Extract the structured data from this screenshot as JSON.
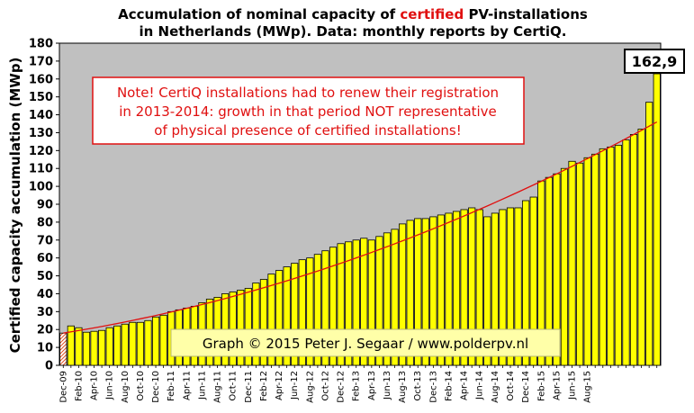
{
  "chart_data": {
    "type": "bar",
    "title_line1_prefix": "Accumulation  of nominal  capacity  of ",
    "title_line1_highlight": "certified",
    "title_line1_suffix": " PV-installations",
    "title_line2": "in Netherlands (MWp). Data: monthly  reports by CertiQ.",
    "ylabel": "Certified capacity accumulation (MWp)",
    "ylim": [
      0,
      180
    ],
    "yticks": [
      0,
      10,
      20,
      30,
      40,
      50,
      60,
      70,
      80,
      90,
      100,
      110,
      120,
      130,
      140,
      150,
      160,
      170,
      180
    ],
    "grid": false,
    "x_tick_labels": [
      "Dec-09",
      "Feb-10",
      "Apr-10",
      "Jun-10",
      "Aug-10",
      "Oct-10",
      "Dec-10",
      "Feb-11",
      "Apr-11",
      "Jun-11",
      "Aug-11",
      "Oct-11",
      "Dec-11",
      "Feb-12",
      "Apr-12",
      "Jun-12",
      "Aug-12",
      "Oct-12",
      "Dec-12",
      "Feb-13",
      "Apr-13",
      "Jun-13",
      "Aug-13",
      "Oct-13",
      "Dec-13",
      "Feb-14",
      "Apr-14",
      "Jun-14",
      "Aug-14",
      "Oct-14",
      "Dec-14",
      "Feb-15",
      "Apr-15",
      "Jun-15",
      "Aug-15"
    ],
    "values": [
      18,
      22,
      21,
      18.5,
      19,
      19.5,
      21,
      22,
      23,
      24,
      24,
      25,
      27,
      28,
      30,
      31,
      32,
      33,
      35,
      37,
      38,
      40,
      41,
      42,
      43,
      46,
      48,
      51,
      53,
      55,
      57,
      59,
      60,
      62,
      64,
      66,
      68,
      69,
      70,
      71,
      70,
      72,
      74,
      76,
      79,
      81,
      82,
      82,
      83,
      84,
      85,
      86,
      87,
      88,
      87,
      83,
      85,
      87,
      88,
      88,
      92,
      94,
      103,
      105,
      107,
      110,
      114,
      113,
      116,
      118,
      121,
      122,
      123,
      126,
      129,
      132,
      147,
      162.9
    ],
    "last_value_label": "162,9",
    "trend_line": {
      "start": 18,
      "end": 136
    },
    "annotation": [
      "Note! CertiQ installations had to renew their registration",
      "in 2013-2014:  growth in that period NOT representative",
      "of physical presence of certified installations!"
    ],
    "credit": "Graph © 2015 Peter J. Segaar / www.polderpv.nl",
    "colors": {
      "plot_bg": "#c0c0c0",
      "bar": "#ffff00",
      "bar_border": "#000000",
      "trend": "#e01010",
      "annotation_text": "#e01010",
      "annotation_border": "#e01010",
      "credit_bg": "#ffffa8",
      "title_highlight": "#e01010"
    }
  }
}
